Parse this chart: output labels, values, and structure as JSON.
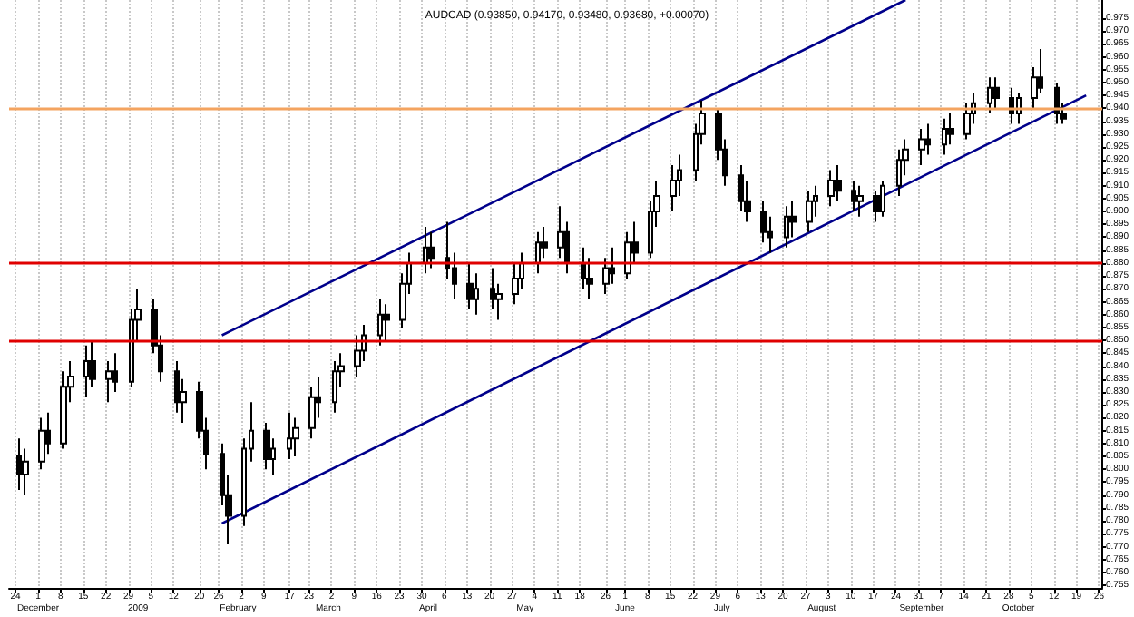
{
  "chart_data": {
    "type": "candlestick",
    "title": "AUDCAD (0.93850, 0.94170, 0.93480, 0.93680, +0.00070)",
    "color": "#000000",
    "grid": "x",
    "x": [
      "2008-11-25",
      "2008-11-27",
      "2008-12-02",
      "2008-12-04",
      "2008-12-09",
      "2008-12-11",
      "2008-12-16",
      "2008-12-18",
      "2008-12-23",
      "2008-12-25",
      "2008-12-30",
      "2009-01-01",
      "2009-01-06",
      "2009-01-08",
      "2009-01-13",
      "2009-01-15",
      "2009-01-20",
      "2009-01-22",
      "2009-01-27",
      "2009-01-29",
      "2009-02-03",
      "2009-02-05",
      "2009-02-10",
      "2009-02-12",
      "2009-02-17",
      "2009-02-19",
      "2009-02-24",
      "2009-02-26",
      "2009-03-03",
      "2009-03-05",
      "2009-03-10",
      "2009-03-12",
      "2009-03-17",
      "2009-03-19",
      "2009-03-24",
      "2009-03-26",
      "2009-03-31",
      "2009-04-02",
      "2009-04-07",
      "2009-04-09",
      "2009-04-14",
      "2009-04-16",
      "2009-04-21",
      "2009-04-23",
      "2009-04-28",
      "2009-04-30",
      "2009-05-05",
      "2009-05-07",
      "2009-05-12",
      "2009-05-14",
      "2009-05-19",
      "2009-05-21",
      "2009-05-26",
      "2009-05-28",
      "2009-06-02",
      "2009-06-04",
      "2009-06-09",
      "2009-06-11",
      "2009-06-16",
      "2009-06-18",
      "2009-06-23",
      "2009-06-25",
      "2009-06-30",
      "2009-07-02",
      "2009-07-07",
      "2009-07-09",
      "2009-07-14",
      "2009-07-16",
      "2009-07-21",
      "2009-07-23",
      "2009-07-28",
      "2009-07-30",
      "2009-08-04",
      "2009-08-06",
      "2009-08-11",
      "2009-08-13",
      "2009-08-18",
      "2009-08-20",
      "2009-08-25",
      "2009-08-27",
      "2009-09-01",
      "2009-09-03",
      "2009-09-08",
      "2009-09-10",
      "2009-09-15",
      "2009-09-17",
      "2009-09-22",
      "2009-09-24",
      "2009-09-29",
      "2009-10-01",
      "2009-10-06",
      "2009-10-08",
      "2009-10-13",
      "2009-10-15"
    ],
    "ohlc": [
      [
        0.805,
        0.812,
        0.792,
        0.798
      ],
      [
        0.798,
        0.808,
        0.79,
        0.803
      ],
      [
        0.803,
        0.82,
        0.8,
        0.815
      ],
      [
        0.815,
        0.822,
        0.806,
        0.81
      ],
      [
        0.81,
        0.838,
        0.808,
        0.832
      ],
      [
        0.832,
        0.842,
        0.826,
        0.836
      ],
      [
        0.836,
        0.848,
        0.828,
        0.842
      ],
      [
        0.842,
        0.85,
        0.832,
        0.835
      ],
      [
        0.835,
        0.842,
        0.826,
        0.838
      ],
      [
        0.838,
        0.845,
        0.83,
        0.834
      ],
      [
        0.834,
        0.862,
        0.832,
        0.858
      ],
      [
        0.858,
        0.87,
        0.85,
        0.862
      ],
      [
        0.862,
        0.866,
        0.845,
        0.848
      ],
      [
        0.848,
        0.852,
        0.834,
        0.838
      ],
      [
        0.838,
        0.842,
        0.822,
        0.826
      ],
      [
        0.826,
        0.835,
        0.818,
        0.83
      ],
      [
        0.83,
        0.834,
        0.812,
        0.815
      ],
      [
        0.815,
        0.82,
        0.8,
        0.806
      ],
      [
        0.806,
        0.81,
        0.786,
        0.79
      ],
      [
        0.79,
        0.798,
        0.771,
        0.782
      ],
      [
        0.782,
        0.812,
        0.778,
        0.808
      ],
      [
        0.808,
        0.826,
        0.803,
        0.815
      ],
      [
        0.815,
        0.818,
        0.8,
        0.804
      ],
      [
        0.804,
        0.812,
        0.798,
        0.808
      ],
      [
        0.808,
        0.822,
        0.804,
        0.812
      ],
      [
        0.812,
        0.82,
        0.805,
        0.816
      ],
      [
        0.816,
        0.832,
        0.812,
        0.828
      ],
      [
        0.828,
        0.836,
        0.82,
        0.826
      ],
      [
        0.826,
        0.842,
        0.822,
        0.838
      ],
      [
        0.838,
        0.845,
        0.832,
        0.84
      ],
      [
        0.84,
        0.852,
        0.836,
        0.846
      ],
      [
        0.846,
        0.856,
        0.842,
        0.852
      ],
      [
        0.852,
        0.866,
        0.848,
        0.86
      ],
      [
        0.86,
        0.864,
        0.85,
        0.858
      ],
      [
        0.858,
        0.876,
        0.855,
        0.872
      ],
      [
        0.872,
        0.884,
        0.868,
        0.88
      ],
      [
        0.88,
        0.894,
        0.876,
        0.886
      ],
      [
        0.886,
        0.892,
        0.878,
        0.882
      ],
      [
        0.882,
        0.896,
        0.874,
        0.878
      ],
      [
        0.878,
        0.884,
        0.866,
        0.872
      ],
      [
        0.872,
        0.88,
        0.862,
        0.866
      ],
      [
        0.866,
        0.876,
        0.86,
        0.87
      ],
      [
        0.87,
        0.878,
        0.862,
        0.866
      ],
      [
        0.866,
        0.872,
        0.858,
        0.868
      ],
      [
        0.868,
        0.88,
        0.864,
        0.874
      ],
      [
        0.874,
        0.884,
        0.87,
        0.88
      ],
      [
        0.88,
        0.892,
        0.876,
        0.888
      ],
      [
        0.888,
        0.894,
        0.882,
        0.886
      ],
      [
        0.886,
        0.902,
        0.882,
        0.892
      ],
      [
        0.892,
        0.896,
        0.876,
        0.88
      ],
      [
        0.88,
        0.886,
        0.87,
        0.874
      ],
      [
        0.874,
        0.882,
        0.866,
        0.872
      ],
      [
        0.872,
        0.882,
        0.868,
        0.878
      ],
      [
        0.878,
        0.886,
        0.872,
        0.876
      ],
      [
        0.876,
        0.892,
        0.874,
        0.888
      ],
      [
        0.888,
        0.896,
        0.88,
        0.884
      ],
      [
        0.884,
        0.904,
        0.882,
        0.9
      ],
      [
        0.9,
        0.912,
        0.894,
        0.906
      ],
      [
        0.906,
        0.918,
        0.9,
        0.912
      ],
      [
        0.912,
        0.922,
        0.906,
        0.916
      ],
      [
        0.916,
        0.934,
        0.912,
        0.93
      ],
      [
        0.93,
        0.943,
        0.926,
        0.938
      ],
      [
        0.938,
        0.94,
        0.92,
        0.924
      ],
      [
        0.924,
        0.928,
        0.91,
        0.914
      ],
      [
        0.914,
        0.918,
        0.9,
        0.904
      ],
      [
        0.904,
        0.912,
        0.896,
        0.9
      ],
      [
        0.9,
        0.904,
        0.888,
        0.892
      ],
      [
        0.892,
        0.898,
        0.884,
        0.89
      ],
      [
        0.89,
        0.902,
        0.886,
        0.898
      ],
      [
        0.898,
        0.904,
        0.89,
        0.896
      ],
      [
        0.896,
        0.908,
        0.892,
        0.904
      ],
      [
        0.904,
        0.91,
        0.898,
        0.906
      ],
      [
        0.906,
        0.916,
        0.902,
        0.912
      ],
      [
        0.912,
        0.918,
        0.904,
        0.908
      ],
      [
        0.908,
        0.912,
        0.9,
        0.904
      ],
      [
        0.904,
        0.91,
        0.898,
        0.906
      ],
      [
        0.906,
        0.908,
        0.896,
        0.9
      ],
      [
        0.9,
        0.912,
        0.898,
        0.91
      ],
      [
        0.91,
        0.924,
        0.906,
        0.92
      ],
      [
        0.92,
        0.928,
        0.914,
        0.924
      ],
      [
        0.924,
        0.932,
        0.918,
        0.928
      ],
      [
        0.928,
        0.934,
        0.922,
        0.926
      ],
      [
        0.926,
        0.936,
        0.922,
        0.932
      ],
      [
        0.932,
        0.938,
        0.926,
        0.93
      ],
      [
        0.93,
        0.942,
        0.928,
        0.938
      ],
      [
        0.938,
        0.946,
        0.934,
        0.942
      ],
      [
        0.942,
        0.952,
        0.938,
        0.948
      ],
      [
        0.948,
        0.952,
        0.94,
        0.944
      ],
      [
        0.944,
        0.948,
        0.934,
        0.938
      ],
      [
        0.938,
        0.946,
        0.934,
        0.944
      ],
      [
        0.944,
        0.956,
        0.94,
        0.952
      ],
      [
        0.952,
        0.963,
        0.946,
        0.948
      ],
      [
        0.948,
        0.95,
        0.934,
        0.938
      ],
      [
        0.938,
        0.942,
        0.934,
        0.936
      ]
    ],
    "series": [
      {
        "type": "line",
        "color": "#00008b",
        "x": [
          "2009-01-27",
          "2009-08-27"
        ],
        "values": [
          0.852,
          0.982
        ]
      },
      {
        "type": "line",
        "color": "#00008b",
        "x": [
          "2009-01-27",
          "2009-10-22"
        ],
        "values": [
          0.779,
          0.945
        ]
      }
    ],
    "ref_lines": [
      {
        "axis": "y",
        "value": 0.94,
        "color": "#f4a460"
      },
      {
        "axis": "y",
        "value": 0.88,
        "color": "#e00000"
      },
      {
        "axis": "y",
        "value": 0.85,
        "color": "#e00000"
      }
    ],
    "xlim": [
      "2008-11-22",
      "2009-10-27"
    ],
    "xticks": [
      {
        "value": "2008-11-24",
        "label": "24"
      },
      {
        "value": "2008-12-01",
        "label": "1"
      },
      {
        "value": "2008-12-08",
        "label": "8"
      },
      {
        "value": "2008-12-15",
        "label": "15"
      },
      {
        "value": "2008-12-22",
        "label": "22"
      },
      {
        "value": "2008-12-29",
        "label": "29"
      },
      {
        "value": "2009-01-05",
        "label": "5"
      },
      {
        "value": "2009-01-12",
        "label": "12"
      },
      {
        "value": "2009-01-20",
        "label": "20"
      },
      {
        "value": "2009-01-26",
        "label": "26"
      },
      {
        "value": "2009-02-02",
        "label": "2"
      },
      {
        "value": "2009-02-09",
        "label": "9"
      },
      {
        "value": "2009-02-17",
        "label": "17"
      },
      {
        "value": "2009-02-23",
        "label": "23"
      },
      {
        "value": "2009-03-02",
        "label": "2"
      },
      {
        "value": "2009-03-09",
        "label": "9"
      },
      {
        "value": "2009-03-16",
        "label": "16"
      },
      {
        "value": "2009-03-23",
        "label": "23"
      },
      {
        "value": "2009-03-30",
        "label": "30"
      },
      {
        "value": "2009-04-06",
        "label": "6"
      },
      {
        "value": "2009-04-13",
        "label": "13"
      },
      {
        "value": "2009-04-20",
        "label": "20"
      },
      {
        "value": "2009-04-27",
        "label": "27"
      },
      {
        "value": "2009-05-04",
        "label": "4"
      },
      {
        "value": "2009-05-11",
        "label": "11"
      },
      {
        "value": "2009-05-18",
        "label": "18"
      },
      {
        "value": "2009-05-26",
        "label": "26"
      },
      {
        "value": "2009-06-01",
        "label": "1"
      },
      {
        "value": "2009-06-08",
        "label": "8"
      },
      {
        "value": "2009-06-15",
        "label": "15"
      },
      {
        "value": "2009-06-22",
        "label": "22"
      },
      {
        "value": "2009-06-29",
        "label": "29"
      },
      {
        "value": "2009-07-06",
        "label": "6"
      },
      {
        "value": "2009-07-13",
        "label": "13"
      },
      {
        "value": "2009-07-20",
        "label": "20"
      },
      {
        "value": "2009-07-27",
        "label": "27"
      },
      {
        "value": "2009-08-03",
        "label": "3"
      },
      {
        "value": "2009-08-10",
        "label": "10"
      },
      {
        "value": "2009-08-17",
        "label": "17"
      },
      {
        "value": "2009-08-24",
        "label": "24"
      },
      {
        "value": "2009-08-31",
        "label": "31"
      },
      {
        "value": "2009-09-07",
        "label": "7"
      },
      {
        "value": "2009-09-14",
        "label": "14"
      },
      {
        "value": "2009-09-21",
        "label": "21"
      },
      {
        "value": "2009-09-28",
        "label": "28"
      },
      {
        "value": "2009-10-05",
        "label": "5"
      },
      {
        "value": "2009-10-12",
        "label": "12"
      },
      {
        "value": "2009-10-19",
        "label": "19"
      },
      {
        "value": "2009-10-26",
        "label": "26"
      }
    ],
    "x2lim": [
      "2008-11-22",
      "2009-10-27"
    ],
    "x2ticks": [
      {
        "value": "2008-12-01",
        "label": "December"
      },
      {
        "value": "2009-01-01",
        "label": "2009"
      },
      {
        "value": "2009-02-01",
        "label": "February"
      },
      {
        "value": "2009-03-01",
        "label": "March"
      },
      {
        "value": "2009-04-01",
        "label": "April"
      },
      {
        "value": "2009-05-01",
        "label": "May"
      },
      {
        "value": "2009-06-01",
        "label": "June"
      },
      {
        "value": "2009-07-01",
        "label": "July"
      },
      {
        "value": "2009-08-01",
        "label": "August"
      },
      {
        "value": "2009-09-01",
        "label": "September"
      },
      {
        "value": "2009-10-01",
        "label": "October"
      }
    ],
    "ylim": [
      0.754,
      0.982
    ],
    "yticks": [
      {
        "value": 0.755,
        "label": "0.755"
      },
      {
        "value": 0.76,
        "label": "0.760"
      },
      {
        "value": 0.765,
        "label": "0.765"
      },
      {
        "value": 0.77,
        "label": "0.770"
      },
      {
        "value": 0.775,
        "label": "0.775"
      },
      {
        "value": 0.78,
        "label": "0.780"
      },
      {
        "value": 0.785,
        "label": "0.785"
      },
      {
        "value": 0.79,
        "label": "0.790"
      },
      {
        "value": 0.795,
        "label": "0.795"
      },
      {
        "value": 0.8,
        "label": "0.800"
      },
      {
        "value": 0.805,
        "label": "0.805"
      },
      {
        "value": 0.81,
        "label": "0.810"
      },
      {
        "value": 0.815,
        "label": "0.815"
      },
      {
        "value": 0.82,
        "label": "0.820"
      },
      {
        "value": 0.825,
        "label": "0.825"
      },
      {
        "value": 0.83,
        "label": "0.830"
      },
      {
        "value": 0.835,
        "label": "0.835"
      },
      {
        "value": 0.84,
        "label": "0.840"
      },
      {
        "value": 0.845,
        "label": "0.845"
      },
      {
        "value": 0.85,
        "label": "0.850"
      },
      {
        "value": 0.855,
        "label": "0.855"
      },
      {
        "value": 0.86,
        "label": "0.860"
      },
      {
        "value": 0.865,
        "label": "0.865"
      },
      {
        "value": 0.87,
        "label": "0.870"
      },
      {
        "value": 0.875,
        "label": "0.875"
      },
      {
        "value": 0.88,
        "label": "0.880"
      },
      {
        "value": 0.885,
        "label": "0.885"
      },
      {
        "value": 0.89,
        "label": "0.890"
      },
      {
        "value": 0.895,
        "label": "0.895"
      },
      {
        "value": 0.9,
        "label": "0.900"
      },
      {
        "value": 0.905,
        "label": "0.905"
      },
      {
        "value": 0.91,
        "label": "0.910"
      },
      {
        "value": 0.915,
        "label": "0.915"
      },
      {
        "value": 0.92,
        "label": "0.920"
      },
      {
        "value": 0.925,
        "label": "0.925"
      },
      {
        "value": 0.93,
        "label": "0.930"
      },
      {
        "value": 0.935,
        "label": "0.935"
      },
      {
        "value": 0.94,
        "label": "0.940"
      },
      {
        "value": 0.945,
        "label": "0.945"
      },
      {
        "value": 0.95,
        "label": "0.950"
      },
      {
        "value": 0.955,
        "label": "0.955"
      },
      {
        "value": 0.96,
        "label": "0.960"
      },
      {
        "value": 0.965,
        "label": "0.965"
      },
      {
        "value": 0.97,
        "label": "0.970"
      },
      {
        "value": 0.975,
        "label": "0.975"
      }
    ]
  }
}
